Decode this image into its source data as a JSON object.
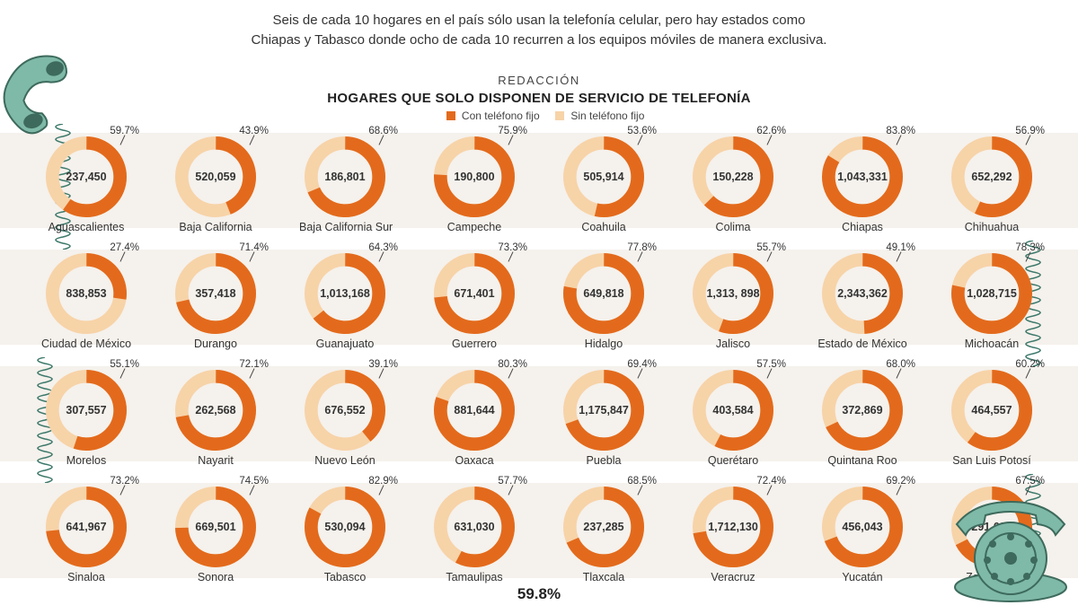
{
  "colors": {
    "accent": "#e36a1c",
    "light": "#f7d3a8",
    "band": "#f5f1ec",
    "phone_green": "#7fb9a8",
    "phone_dark": "#3d6a5c",
    "cord": "#3d796b",
    "text": "#333333"
  },
  "header": {
    "line1": "Seis de cada 10 hogares en el país sólo usan la telefonía celular, pero hay estados como",
    "line2": "Chiapas y Tabasco donde ocho de cada 10 recurren a los equipos móviles de manera exclusiva."
  },
  "redaccion": "REDACCIÓN",
  "title": "HOGARES QUE SOLO DISPONEN DE SERVICIO DE TELEFONÍA",
  "legend": {
    "with": "Con teléfono fijo",
    "without": "Sin teléfono fijo"
  },
  "footer_pct": "59.8%",
  "donut_style": {
    "outer_r": 43,
    "inner_r": 29,
    "stroke_w": 14
  },
  "rows": [
    [
      {
        "name": "Aguascalientes",
        "pct": 59.7,
        "value": "237,450"
      },
      {
        "name": "Baja California",
        "pct": 43.9,
        "value": "520,059"
      },
      {
        "name": "Baja California Sur",
        "pct": 68.6,
        "value": "186,801"
      },
      {
        "name": "Campeche",
        "pct": 75.9,
        "value": "190,800"
      },
      {
        "name": "Coahuila",
        "pct": 53.6,
        "value": "505,914"
      },
      {
        "name": "Colima",
        "pct": 62.6,
        "value": "150,228"
      },
      {
        "name": "Chiapas",
        "pct": 83.8,
        "value": "1,043,331"
      },
      {
        "name": "Chihuahua",
        "pct": 56.9,
        "value": "652,292"
      }
    ],
    [
      {
        "name": "Ciudad de México",
        "pct": 27.4,
        "value": "838,853"
      },
      {
        "name": "Durango",
        "pct": 71.4,
        "value": "357,418"
      },
      {
        "name": "Guanajuato",
        "pct": 64.3,
        "value": "1,013,168"
      },
      {
        "name": "Guerrero",
        "pct": 73.3,
        "value": "671,401"
      },
      {
        "name": "Hidalgo",
        "pct": 77.8,
        "value": "649,818"
      },
      {
        "name": "Jalisco",
        "pct": 55.7,
        "value": "1,313, 898"
      },
      {
        "name": "Estado de México",
        "pct": 49.1,
        "value": "2,343,362"
      },
      {
        "name": "Michoacán",
        "pct": 78.3,
        "value": "1,028,715"
      }
    ],
    [
      {
        "name": "Morelos",
        "pct": 55.1,
        "value": "307,557"
      },
      {
        "name": "Nayarit",
        "pct": 72.1,
        "value": "262,568"
      },
      {
        "name": "Nuevo León",
        "pct": 39.1,
        "value": "676,552"
      },
      {
        "name": "Oaxaca",
        "pct": 80.3,
        "value": "881,644"
      },
      {
        "name": "Puebla",
        "pct": 69.4,
        "value": "1,175,847"
      },
      {
        "name": "Querétaro",
        "pct": 57.5,
        "value": "403,584"
      },
      {
        "name": "Quintana Roo",
        "pct": 68.0,
        "value": "372,869"
      },
      {
        "name": "San Luis Potosí",
        "pct": 60.2,
        "value": "464,557"
      }
    ],
    [
      {
        "name": "Sinaloa",
        "pct": 73.2,
        "value": "641,967"
      },
      {
        "name": "Sonora",
        "pct": 74.5,
        "value": "669,501"
      },
      {
        "name": "Tabasco",
        "pct": 82.9,
        "value": "530,094"
      },
      {
        "name": "Tamaulipas",
        "pct": 57.7,
        "value": "631,030"
      },
      {
        "name": "Tlaxcala",
        "pct": 68.5,
        "value": "237,285"
      },
      {
        "name": "Veracruz",
        "pct": 72.4,
        "value": "1,712,130"
      },
      {
        "name": "Yucatán",
        "pct": 69.2,
        "value": "456,043"
      },
      {
        "name": "Zacatecas",
        "pct": 67.5,
        "value": "291,629"
      }
    ]
  ]
}
